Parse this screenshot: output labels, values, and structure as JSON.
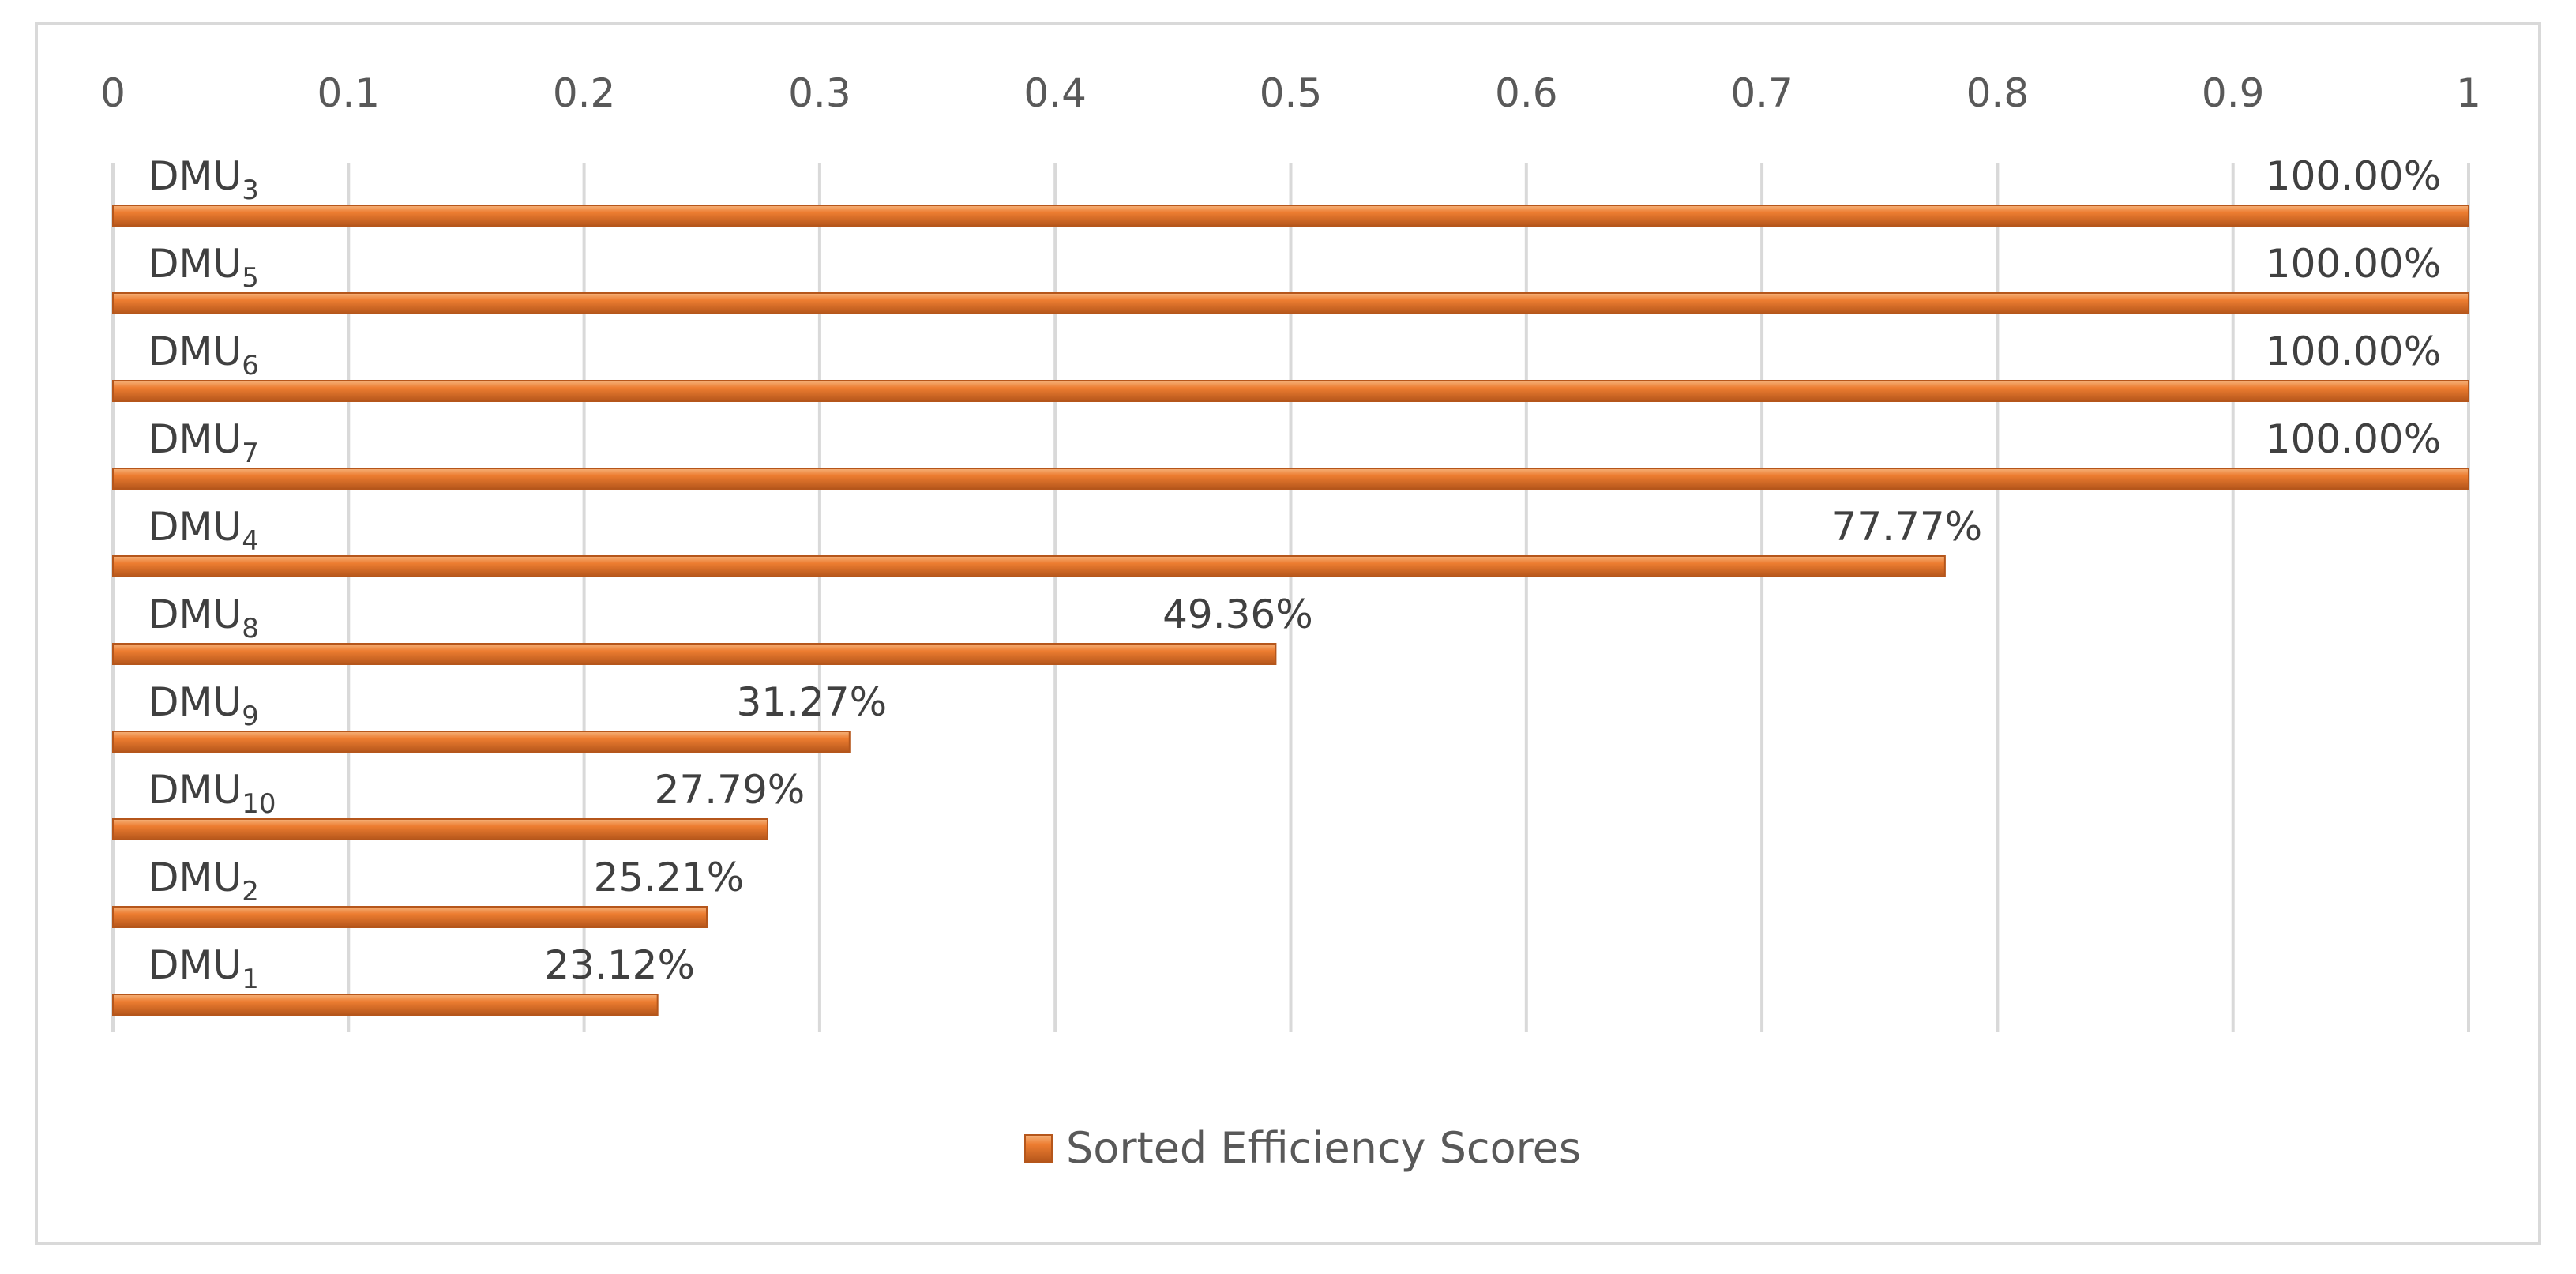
{
  "chart_data": {
    "type": "bar",
    "orientation": "horizontal",
    "series_name": "Sorted Efficiency Scores",
    "categories": [
      {
        "base": "DMU",
        "sub": "3"
      },
      {
        "base": "DMU",
        "sub": "5"
      },
      {
        "base": "DMU",
        "sub": "6"
      },
      {
        "base": "DMU",
        "sub": "7"
      },
      {
        "base": "DMU",
        "sub": "4"
      },
      {
        "base": "DMU",
        "sub": "8"
      },
      {
        "base": "DMU",
        "sub": "9"
      },
      {
        "base": "DMU",
        "sub": "10"
      },
      {
        "base": "DMU",
        "sub": "2"
      },
      {
        "base": "DMU",
        "sub": "1"
      }
    ],
    "values": [
      1.0,
      1.0,
      1.0,
      1.0,
      0.7777,
      0.4936,
      0.3127,
      0.2779,
      0.2521,
      0.2312
    ],
    "data_labels": [
      "100.00%",
      "100.00%",
      "100.00%",
      "100.00%",
      "77.77%",
      "49.36%",
      "31.27%",
      "27.79%",
      "25.21%",
      "23.12%"
    ],
    "x_ticks": [
      "0",
      "0.1",
      "0.2",
      "0.3",
      "0.4",
      "0.5",
      "0.6",
      "0.7",
      "0.8",
      "0.9",
      "1"
    ],
    "xlim": [
      0,
      1
    ],
    "x_axis_position": "top",
    "grid": true,
    "legend": {
      "position": "bottom",
      "label": "Sorted Efficiency Scores"
    },
    "colors": {
      "bar": "#ed7d31",
      "bar_dark": "#b5561b",
      "bar_light": "#f6b27a",
      "grid": "#d9d9d9"
    }
  }
}
